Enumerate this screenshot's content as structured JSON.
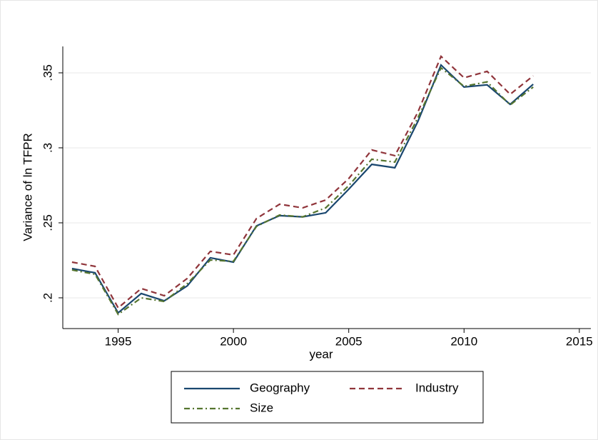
{
  "chart_data": {
    "type": "line",
    "x_label": "year",
    "y_label": "Variance of ln TFPR",
    "x": [
      1993,
      1994,
      1995,
      1996,
      1997,
      1998,
      1999,
      2000,
      2001,
      2002,
      2003,
      2004,
      2005,
      2006,
      2007,
      2008,
      2009,
      2010,
      2011,
      2012,
      2013
    ],
    "series": [
      {
        "name": "Geography",
        "color": "#1a476f",
        "dash": "none",
        "values": [
          0.2195,
          0.2167,
          0.19,
          0.2029,
          0.198,
          0.208,
          0.2267,
          0.2238,
          0.248,
          0.2548,
          0.254,
          0.2567,
          0.2724,
          0.289,
          0.2867,
          0.3176,
          0.3552,
          0.3405,
          0.342,
          0.329,
          0.3424
        ]
      },
      {
        "name": "Industry",
        "color": "#90353b",
        "dash": "8,5",
        "values": [
          0.2238,
          0.221,
          0.1933,
          0.2062,
          0.2014,
          0.213,
          0.231,
          0.2286,
          0.2529,
          0.2624,
          0.26,
          0.2652,
          0.2795,
          0.2986,
          0.2948,
          0.3238,
          0.361,
          0.3467,
          0.351,
          0.3357,
          0.348
        ]
      },
      {
        "name": "Size",
        "color": "#55752f",
        "dash": "8,4,2,4",
        "values": [
          0.2186,
          0.2157,
          0.189,
          0.2,
          0.1976,
          0.2095,
          0.2252,
          0.2243,
          0.2476,
          0.2552,
          0.254,
          0.26,
          0.2748,
          0.2924,
          0.2905,
          0.32,
          0.3533,
          0.341,
          0.344,
          0.3286,
          0.3405
        ]
      }
    ],
    "xlim": [
      1992.6,
      2015.5
    ],
    "xticks": [
      1995,
      2000,
      2005,
      2010,
      2015
    ],
    "ylim": [
      0.1795,
      0.3676
    ],
    "yticks": [
      {
        "value": 0.2,
        "label": ".2"
      },
      {
        "value": 0.25,
        "label": ".25"
      },
      {
        "value": 0.3,
        "label": ".3"
      },
      {
        "value": 0.35,
        "label": ".35"
      }
    ],
    "grid": true
  }
}
